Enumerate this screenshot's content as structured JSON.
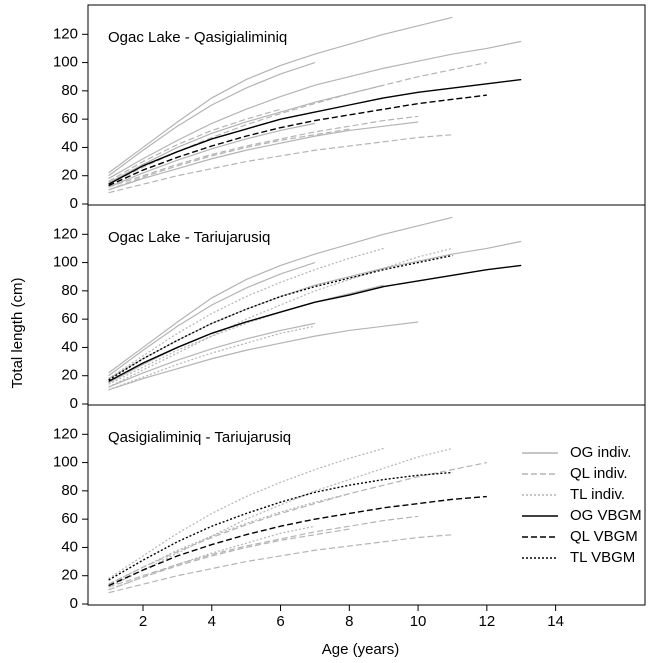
{
  "chart_data": [
    {
      "type": "line",
      "title": "Ogac Lake - Qasigialiminiq",
      "x": [
        1,
        2,
        3,
        4,
        5,
        6,
        7,
        8,
        9,
        10,
        11,
        12,
        13
      ],
      "xlim": [
        0.4,
        16.6
      ],
      "ylim": [
        0,
        140
      ],
      "yticks": [
        0,
        20,
        40,
        60,
        80,
        100,
        120
      ],
      "series": [
        {
          "color": "#b4b4b4",
          "dash": "solid",
          "values": [
            [
              22,
              40,
              58,
              75,
              88,
              98,
              106,
              113,
              120,
              126,
              132,
              null,
              null
            ],
            [
              18,
              32,
              45,
              57,
              67,
              76,
              84,
              90,
              96,
              101,
              106,
              110,
              115
            ],
            [
              15,
              28,
              40,
              50,
              58,
              65,
              72,
              78,
              84,
              null,
              null,
              null,
              null
            ],
            [
              12,
              22,
              31,
              39,
              46,
              52,
              57,
              null,
              null,
              null,
              null,
              null,
              null
            ],
            [
              20,
              38,
              55,
              70,
              82,
              92,
              100,
              null,
              null,
              null,
              null,
              null,
              null
            ],
            [
              10,
              18,
              25,
              32,
              38,
              43,
              48,
              52,
              55,
              58,
              null,
              null,
              null
            ]
          ]
        },
        {
          "color": "#b4b4b4",
          "dash": "dashed",
          "values": [
            [
              14,
              26,
              37,
              47,
              56,
              64,
              71,
              78,
              84,
              90,
              95,
              100,
              null
            ],
            [
              10,
              19,
              27,
              34,
              40,
              45,
              49,
              53,
              null,
              null,
              null,
              null,
              null
            ],
            [
              8,
              14,
              20,
              25,
              30,
              34,
              38,
              41,
              44,
              47,
              49,
              null,
              null
            ],
            [
              16,
              30,
              42,
              52,
              60,
              67,
              null,
              null,
              null,
              null,
              null,
              null,
              null
            ],
            [
              12,
              20,
              28,
              35,
              41,
              46,
              51,
              55,
              59,
              62,
              null,
              null,
              null
            ]
          ]
        },
        {
          "color": "#000000",
          "dash": "solid",
          "values": [
            14,
            27,
            37,
            46,
            53,
            60,
            65,
            70,
            75,
            79,
            82,
            85,
            88
          ]
        },
        {
          "color": "#000000",
          "dash": "dashed",
          "values": [
            13,
            24,
            33,
            41,
            48,
            54,
            59,
            63,
            67,
            71,
            74,
            77,
            null
          ]
        }
      ]
    },
    {
      "type": "line",
      "title": "Ogac Lake - Tariujarusiq",
      "ylabel": "Total length (cm)",
      "x": [
        1,
        2,
        3,
        4,
        5,
        6,
        7,
        8,
        9,
        10,
        11,
        12,
        13
      ],
      "xlim": [
        0.4,
        16.6
      ],
      "ylim": [
        0,
        140
      ],
      "yticks": [
        0,
        20,
        40,
        60,
        80,
        100,
        120
      ],
      "series": [
        {
          "color": "#b4b4b4",
          "dash": "solid",
          "values": [
            [
              22,
              40,
              58,
              75,
              88,
              98,
              106,
              113,
              120,
              126,
              132,
              null,
              null
            ],
            [
              18,
              32,
              45,
              57,
              67,
              76,
              84,
              90,
              96,
              101,
              106,
              110,
              115
            ],
            [
              15,
              28,
              40,
              50,
              58,
              65,
              72,
              78,
              84,
              null,
              null,
              null,
              null
            ],
            [
              12,
              22,
              31,
              39,
              46,
              52,
              57,
              null,
              null,
              null,
              null,
              null,
              null
            ],
            [
              20,
              38,
              55,
              70,
              82,
              92,
              100,
              null,
              null,
              null,
              null,
              null,
              null
            ],
            [
              10,
              18,
              25,
              32,
              38,
              43,
              48,
              52,
              55,
              58,
              null,
              null,
              null
            ]
          ]
        },
        {
          "color": "#b4b4b4",
          "dash": "dotted",
          "values": [
            [
              18,
              34,
              50,
              64,
              76,
              86,
              95,
              103,
              110,
              null,
              null,
              null,
              null
            ],
            [
              14,
              26,
              38,
              48,
              57,
              65,
              72,
              78,
              null,
              null,
              null,
              null,
              null
            ],
            [
              10,
              19,
              28,
              36,
              43,
              50,
              55,
              null,
              null,
              null,
              null,
              null,
              null
            ],
            [
              12,
              24,
              36,
              48,
              60,
              70,
              80,
              88,
              96,
              104,
              110,
              null,
              null
            ]
          ]
        },
        {
          "color": "#000000",
          "dash": "solid",
          "values": [
            16,
            29,
            40,
            50,
            58,
            65,
            72,
            77,
            83,
            87,
            91,
            95,
            98
          ]
        },
        {
          "color": "#000000",
          "dash": "dotted",
          "values": [
            17,
            32,
            45,
            57,
            67,
            76,
            83,
            89,
            95,
            100,
            105,
            null,
            null
          ]
        }
      ]
    },
    {
      "type": "line",
      "title": "Qasigialiminiq - Tariujarusiq",
      "xlabel": "Age (years)",
      "x": [
        1,
        2,
        3,
        4,
        5,
        6,
        7,
        8,
        9,
        10,
        11,
        12,
        13
      ],
      "xlim": [
        0.4,
        16.6
      ],
      "xticks": [
        2,
        4,
        6,
        8,
        10,
        12,
        14
      ],
      "ylim": [
        0,
        140
      ],
      "yticks": [
        0,
        20,
        40,
        60,
        80,
        100,
        120
      ],
      "legend": "right",
      "series": [
        {
          "name": "OG indiv.",
          "color": "#b4b4b4",
          "dash": "solid",
          "values": [
            [
              null,
              null,
              null,
              null,
              null,
              null,
              null,
              null,
              null,
              null,
              null,
              null,
              null
            ]
          ]
        },
        {
          "name": "QL indiv.",
          "color": "#b4b4b4",
          "dash": "dashed",
          "values": [
            [
              14,
              26,
              37,
              47,
              56,
              64,
              71,
              78,
              84,
              90,
              95,
              100,
              null
            ],
            [
              10,
              19,
              27,
              34,
              40,
              45,
              49,
              53,
              null,
              null,
              null,
              null,
              null
            ],
            [
              8,
              14,
              20,
              25,
              30,
              34,
              38,
              41,
              44,
              47,
              49,
              null,
              null
            ],
            [
              12,
              20,
              28,
              35,
              41,
              46,
              51,
              55,
              59,
              62,
              null,
              null,
              null
            ]
          ]
        },
        {
          "name": "TL indiv.",
          "color": "#b4b4b4",
          "dash": "dotted",
          "values": [
            [
              18,
              34,
              50,
              64,
              76,
              86,
              95,
              103,
              110,
              null,
              null,
              null,
              null
            ],
            [
              14,
              26,
              38,
              48,
              57,
              65,
              72,
              78,
              null,
              null,
              null,
              null,
              null
            ],
            [
              10,
              19,
              28,
              36,
              43,
              50,
              55,
              null,
              null,
              null,
              null,
              null,
              null
            ],
            [
              12,
              24,
              36,
              48,
              60,
              70,
              80,
              88,
              96,
              104,
              110,
              null,
              null
            ]
          ]
        },
        {
          "name": "OG VBGM",
          "color": "#000000",
          "dash": "solid",
          "values": [
            null,
            null,
            null,
            null,
            null,
            null,
            null,
            null,
            null,
            null,
            null,
            null,
            null
          ]
        },
        {
          "name": "QL VBGM",
          "color": "#000000",
          "dash": "dashed",
          "values": [
            13,
            24,
            34,
            42,
            49,
            55,
            60,
            64,
            68,
            71,
            74,
            76,
            null
          ]
        },
        {
          "name": "TL VBGM",
          "color": "#000000",
          "dash": "dotted",
          "values": [
            17,
            31,
            44,
            55,
            64,
            72,
            79,
            84,
            88,
            91,
            93,
            null,
            null
          ]
        }
      ]
    }
  ]
}
